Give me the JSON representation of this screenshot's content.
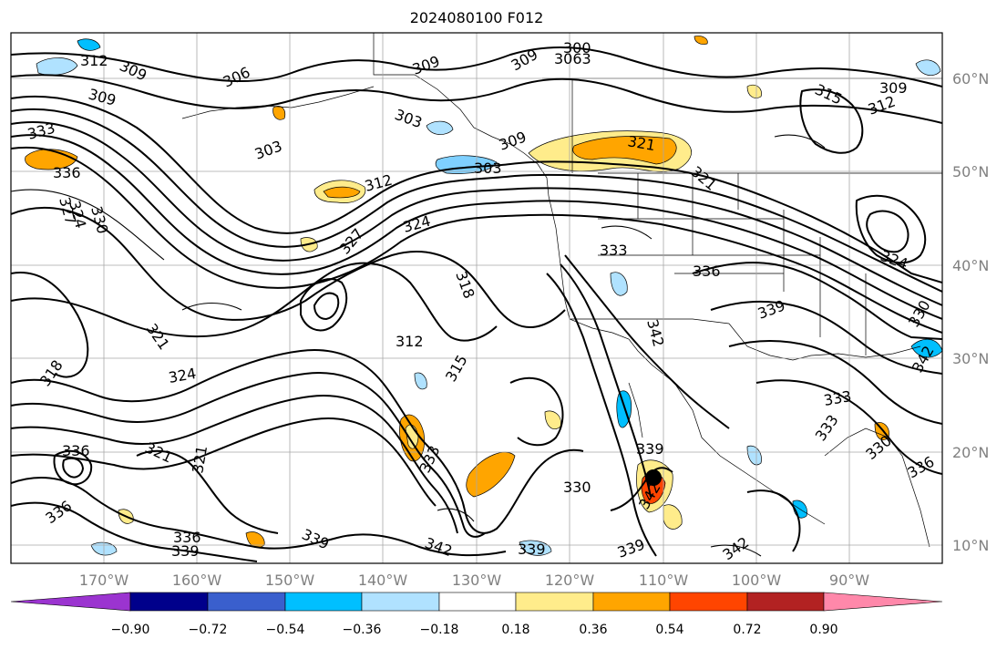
{
  "title": "2024080100 F012",
  "latitude_labels": [
    "60°N",
    "50°N",
    "40°N",
    "30°N",
    "20°N",
    "10°N"
  ],
  "longitude_labels": [
    "170°W",
    "160°W",
    "150°W",
    "140°W",
    "130°W",
    "120°W",
    "110°W",
    "100°W",
    "90°W"
  ],
  "contour_labels": [
    "312",
    "309",
    "306",
    "309",
    "303",
    "303",
    "309",
    "300",
    "3063",
    "309",
    "315",
    "309",
    "312",
    "333",
    "336",
    "327",
    "324",
    "330",
    "303",
    "312",
    "324",
    "309",
    "321",
    "327",
    "321",
    "324",
    "333",
    "336",
    "318",
    "312",
    "315",
    "342",
    "339",
    "318",
    "321",
    "324",
    "330",
    "321",
    "321",
    "333",
    "330",
    "339",
    "342",
    "333",
    "333",
    "336",
    "336",
    "339",
    "336",
    "342",
    "339",
    "339",
    "342",
    "336",
    "339",
    "336",
    "330",
    "342"
  ],
  "colorbar": {
    "colors": [
      "#9b34d0",
      "#00008b",
      "#3a5fcd",
      "#00bfff",
      "#b0e2ff",
      "#ffffff",
      "#ffec8b",
      "#ffa500",
      "#ff4500",
      "#b22222",
      "#ff88aa"
    ],
    "tick_labels": [
      "−0.90",
      "−0.72",
      "−0.54",
      "−0.36",
      "−0.18",
      "0.18",
      "0.36",
      "0.54",
      "0.72",
      "0.90"
    ]
  }
}
